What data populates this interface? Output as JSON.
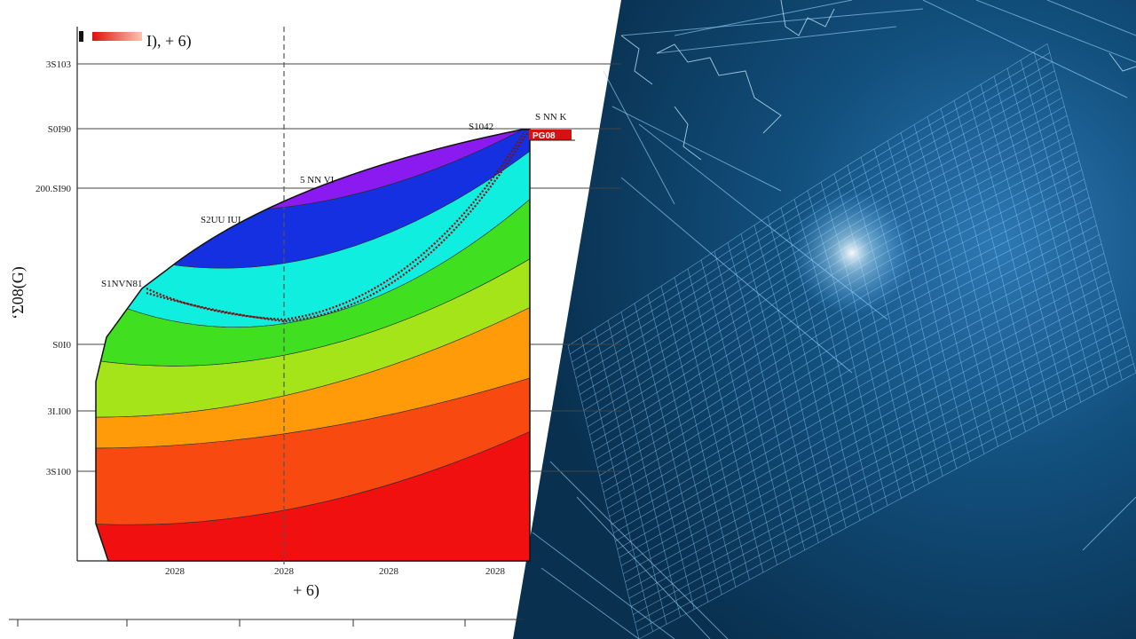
{
  "chart_data": {
    "type": "area",
    "ylabel": "‘Σ08(G)",
    "xlabel": "+ 6)",
    "legend": {
      "label": "I), + 6)",
      "placement": "top-left"
    },
    "badge_label": "PG08",
    "y_ticks": [
      "3S103",
      "S0I90",
      "200.SI90",
      "S0I0",
      "3I.I00",
      "3S100"
    ],
    "x_ticks": [
      "2028",
      "2028",
      "2028",
      "2028"
    ],
    "annotations": [
      "S1042",
      "S NN K",
      "5 NN VI",
      "S2UU IUI",
      "S1NVN81"
    ],
    "bands": [
      {
        "name": "red",
        "color": "#f01010"
      },
      {
        "name": "orange-red",
        "color": "#f84a10"
      },
      {
        "name": "orange",
        "color": "#ff9a08"
      },
      {
        "name": "yellow-green",
        "color": "#a6e41a"
      },
      {
        "name": "green",
        "color": "#40e020"
      },
      {
        "name": "cyan",
        "color": "#10eee0"
      },
      {
        "name": "blue",
        "color": "#1530e0"
      },
      {
        "name": "purple",
        "color": "#8a1af0"
      },
      {
        "name": "magenta",
        "color": "#e020e0"
      },
      {
        "name": "pink",
        "color": "#f070e8"
      },
      {
        "name": "top-red",
        "color": "#e81010"
      }
    ],
    "grid": true
  },
  "background": {
    "panel_color": "#0d3a66",
    "mesh_color": "#8fd0ff"
  }
}
